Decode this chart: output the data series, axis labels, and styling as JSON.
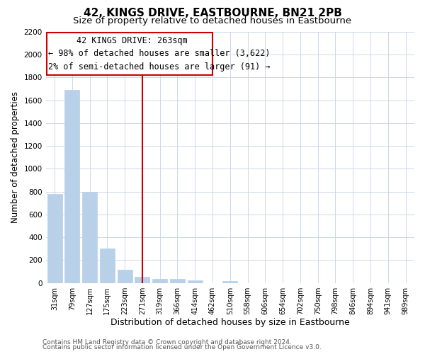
{
  "title": "42, KINGS DRIVE, EASTBOURNE, BN21 2PB",
  "subtitle": "Size of property relative to detached houses in Eastbourne",
  "xlabel": "Distribution of detached houses by size in Eastbourne",
  "ylabel": "Number of detached properties",
  "bar_labels": [
    "31sqm",
    "79sqm",
    "127sqm",
    "175sqm",
    "223sqm",
    "271sqm",
    "319sqm",
    "366sqm",
    "414sqm",
    "462sqm",
    "510sqm",
    "558sqm",
    "606sqm",
    "654sqm",
    "702sqm",
    "750sqm",
    "798sqm",
    "846sqm",
    "894sqm",
    "941sqm",
    "989sqm"
  ],
  "bar_values": [
    780,
    1690,
    800,
    300,
    115,
    55,
    35,
    35,
    20,
    0,
    15,
    0,
    0,
    0,
    0,
    0,
    0,
    0,
    0,
    0,
    0
  ],
  "bar_color": "#b8d0e8",
  "vline_x": 5,
  "vline_color": "#cc0000",
  "annotation_title": "42 KINGS DRIVE: 263sqm",
  "annotation_line1": "← 98% of detached houses are smaller (3,622)",
  "annotation_line2": "2% of semi-detached houses are larger (91) →",
  "annotation_box_color": "#ffffff",
  "annotation_box_edge": "#cc0000",
  "ylim": [
    0,
    2200
  ],
  "yticks": [
    0,
    200,
    400,
    600,
    800,
    1000,
    1200,
    1400,
    1600,
    1800,
    2000,
    2200
  ],
  "footer1": "Contains HM Land Registry data © Crown copyright and database right 2024.",
  "footer2": "Contains public sector information licensed under the Open Government Licence v3.0.",
  "title_fontsize": 11,
  "subtitle_fontsize": 9.5,
  "xlabel_fontsize": 9,
  "ylabel_fontsize": 8.5,
  "annotation_fontsize": 8.5,
  "footer_fontsize": 6.5
}
